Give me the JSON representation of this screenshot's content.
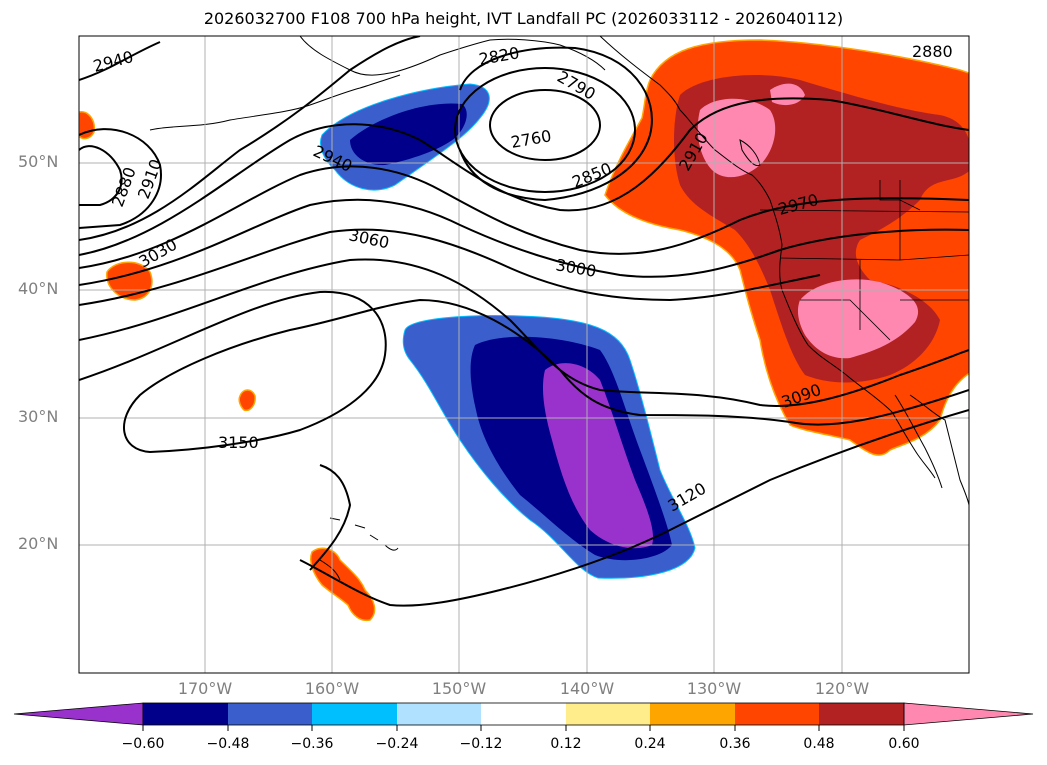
{
  "title": "2026032700 F108 700 hPa height, IVT Landfall PC (2026033112 - 2026040112)",
  "lat_labels": [
    "50°N",
    "40°N",
    "30°N",
    "20°N"
  ],
  "lon_labels": [
    "170°W",
    "160°W",
    "150°W",
    "140°W",
    "130°W",
    "120°W"
  ],
  "contour_labels": [
    "2940",
    "2820",
    "2790",
    "2880",
    "2760",
    "2910",
    "2940",
    "2880",
    "2910",
    "2850",
    "2970",
    "3060",
    "3030",
    "3000",
    "3150",
    "3090",
    "3120"
  ],
  "colorbar": {
    "ticks": [
      "−0.60",
      "−0.48",
      "−0.36",
      "−0.24",
      "−0.12",
      "0.12",
      "0.24",
      "0.36",
      "0.48",
      "0.60"
    ],
    "colors": [
      "#9932cc",
      "#00008b",
      "#3a5fcd",
      "#00bfff",
      "#b0e2ff",
      "#ffffff",
      "#ffec8b",
      "#ffa500",
      "#ff4500",
      "#b22222",
      "#ff88b0"
    ]
  }
}
